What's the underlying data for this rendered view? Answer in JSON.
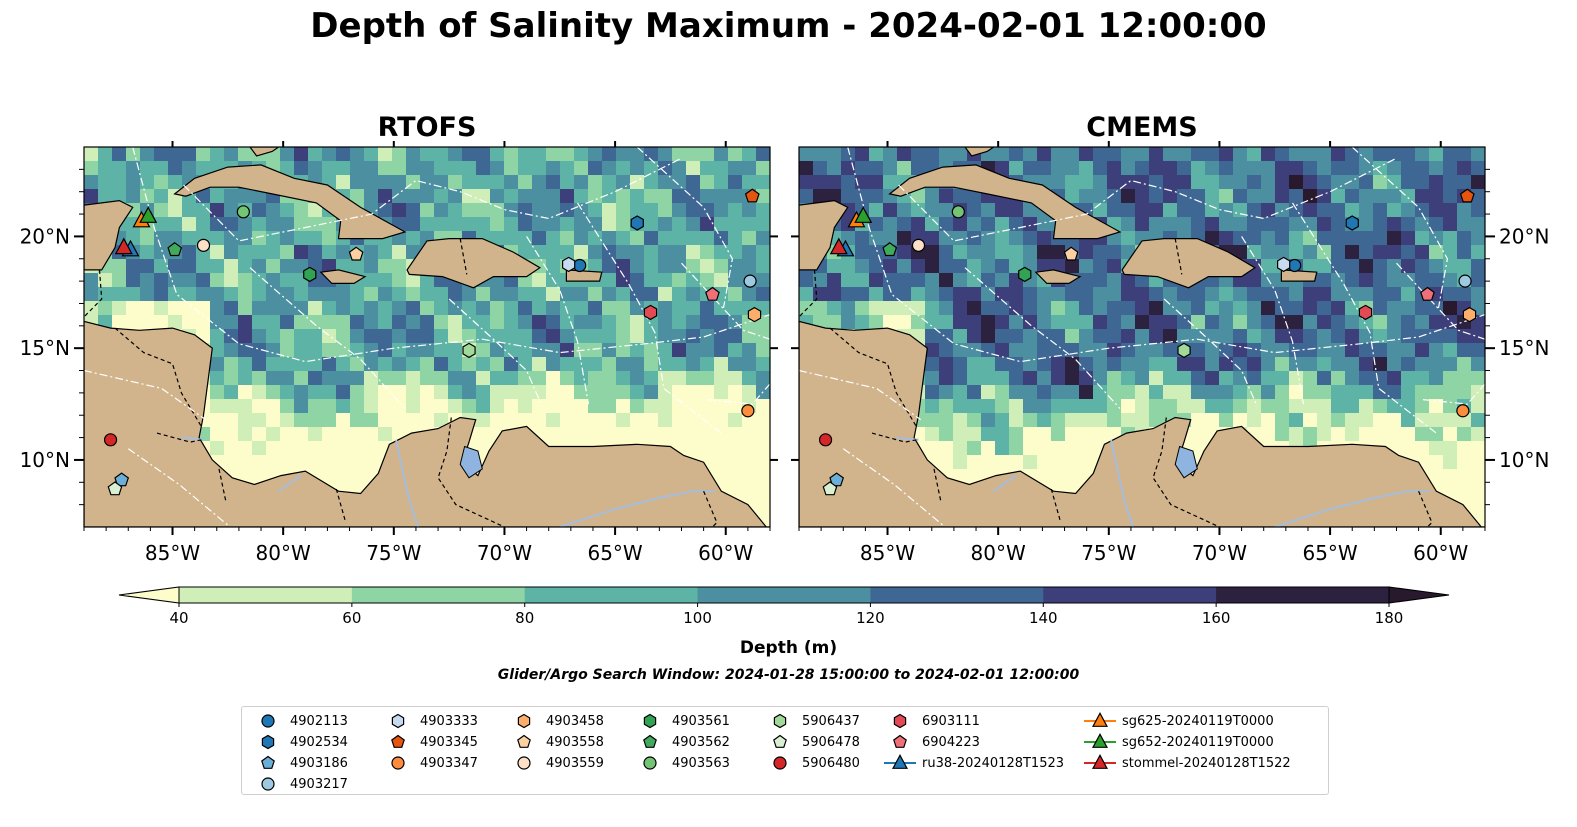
{
  "title": "Depth of Salinity Maximum - 2024-02-01 12:00:00",
  "panels": [
    {
      "title": "RTOFS"
    },
    {
      "title": "CMEMS"
    }
  ],
  "axes": {
    "lon_ticks": [
      "85°W",
      "80°W",
      "75°W",
      "70°W",
      "65°W",
      "60°W"
    ],
    "lat_ticks": [
      "20°N",
      "15°N",
      "10°N"
    ],
    "lon_range": [
      -89,
      -58
    ],
    "lat_range": [
      7,
      24
    ]
  },
  "colorbar": {
    "label": "Depth (m)",
    "ticks": [
      "40",
      "60",
      "80",
      "100",
      "120",
      "140",
      "160",
      "180"
    ],
    "extend": "both",
    "colormap": "deep",
    "colors": [
      "#fdfdcc",
      "#cfeeb8",
      "#8fd4a4",
      "#5db4a6",
      "#4b8fa0",
      "#3e6794",
      "#3d3f7a",
      "#2d2140",
      "#281a2c"
    ]
  },
  "search_window": "Glider/Argo Search Window: 2024-01-28 15:00:00 to 2024-02-01 12:00:00",
  "map_colors": {
    "land": "#d2b48c",
    "lake": "#8fb4e0",
    "river": "#a6bddb",
    "boundary": "#000000",
    "eez": "#ffffff"
  },
  "legend": {
    "columns": [
      [
        {
          "label": "4902113",
          "marker": "circle",
          "color": "#1f77b4"
        },
        {
          "label": "4902534",
          "marker": "hexagon",
          "color": "#1f77b4"
        },
        {
          "label": "4903186",
          "marker": "pentagon",
          "color": "#6baed6"
        },
        {
          "label": "4903217",
          "marker": "circle",
          "color": "#9ecae1"
        }
      ],
      [
        {
          "label": "4903333",
          "marker": "hexagon",
          "color": "#c6dbef"
        },
        {
          "label": "4903345",
          "marker": "pentagon",
          "color": "#e6550d"
        },
        {
          "label": "4903347",
          "marker": "circle",
          "color": "#fd8d3c"
        }
      ],
      [
        {
          "label": "4903458",
          "marker": "hexagon",
          "color": "#fdae6b"
        },
        {
          "label": "4903558",
          "marker": "pentagon",
          "color": "#fdd0a2"
        },
        {
          "label": "4903559",
          "marker": "circle",
          "color": "#fde0c8"
        }
      ],
      [
        {
          "label": "4903561",
          "marker": "hexagon",
          "color": "#31a354"
        },
        {
          "label": "4903562",
          "marker": "pentagon",
          "color": "#41ab5d"
        },
        {
          "label": "4903563",
          "marker": "circle",
          "color": "#74c476"
        }
      ],
      [
        {
          "label": "5906437",
          "marker": "hexagon",
          "color": "#a1d99b"
        },
        {
          "label": "5906478",
          "marker": "pentagon",
          "color": "#d9f0d3"
        },
        {
          "label": "5906480",
          "marker": "circle",
          "color": "#d62728"
        }
      ],
      [
        {
          "label": "6903111",
          "marker": "hexagon",
          "color": "#e34a53"
        },
        {
          "label": "6904223",
          "marker": "pentagon",
          "color": "#f07078"
        },
        {
          "label": "ru38-20240128T1523",
          "marker": "triangle-line",
          "color": "#1f77b4"
        }
      ],
      [
        {
          "label": "sg625-20240119T0000",
          "marker": "triangle-line",
          "color": "#ff7f0e"
        },
        {
          "label": "sg652-20240119T0000",
          "marker": "triangle-line",
          "color": "#2ca02c"
        },
        {
          "label": "stommel-20240128T1522",
          "marker": "triangle-line",
          "color": "#d62728"
        }
      ]
    ]
  },
  "observations": [
    {
      "id": "4902113",
      "lon": -66.6,
      "lat": 18.7
    },
    {
      "id": "4902534",
      "lon": -64.0,
      "lat": 20.6
    },
    {
      "id": "4903186",
      "lon": -87.3,
      "lat": 9.1
    },
    {
      "id": "4903217",
      "lon": -58.9,
      "lat": 18.0
    },
    {
      "id": "4903333",
      "lon": -67.1,
      "lat": 18.75
    },
    {
      "id": "4903345",
      "lon": -58.8,
      "lat": 21.8
    },
    {
      "id": "4903347",
      "lon": -59.0,
      "lat": 12.2
    },
    {
      "id": "4903458",
      "lon": -58.7,
      "lat": 16.5
    },
    {
      "id": "4903558",
      "lon": -76.7,
      "lat": 19.2
    },
    {
      "id": "4903559",
      "lon": -83.6,
      "lat": 19.6
    },
    {
      "id": "4903561",
      "lon": -78.8,
      "lat": 18.3
    },
    {
      "id": "4903562",
      "lon": -84.9,
      "lat": 19.4
    },
    {
      "id": "4903563",
      "lon": -81.8,
      "lat": 21.1
    },
    {
      "id": "5906437",
      "lon": -71.6,
      "lat": 14.9
    },
    {
      "id": "5906478",
      "lon": -87.6,
      "lat": 8.7
    },
    {
      "id": "5906480",
      "lon": -87.8,
      "lat": 10.9
    },
    {
      "id": "6903111",
      "lon": -63.4,
      "lat": 16.6
    },
    {
      "id": "6904223",
      "lon": -60.6,
      "lat": 17.4
    },
    {
      "id": "ru38-20240128T1523",
      "lon": -86.9,
      "lat": 19.4
    },
    {
      "id": "sg625-20240119T0000",
      "lon": -86.4,
      "lat": 20.7
    },
    {
      "id": "sg652-20240119T0000",
      "lon": -86.1,
      "lat": 20.9
    },
    {
      "id": "stommel-20240128T1522",
      "lon": -87.2,
      "lat": 19.5
    }
  ]
}
